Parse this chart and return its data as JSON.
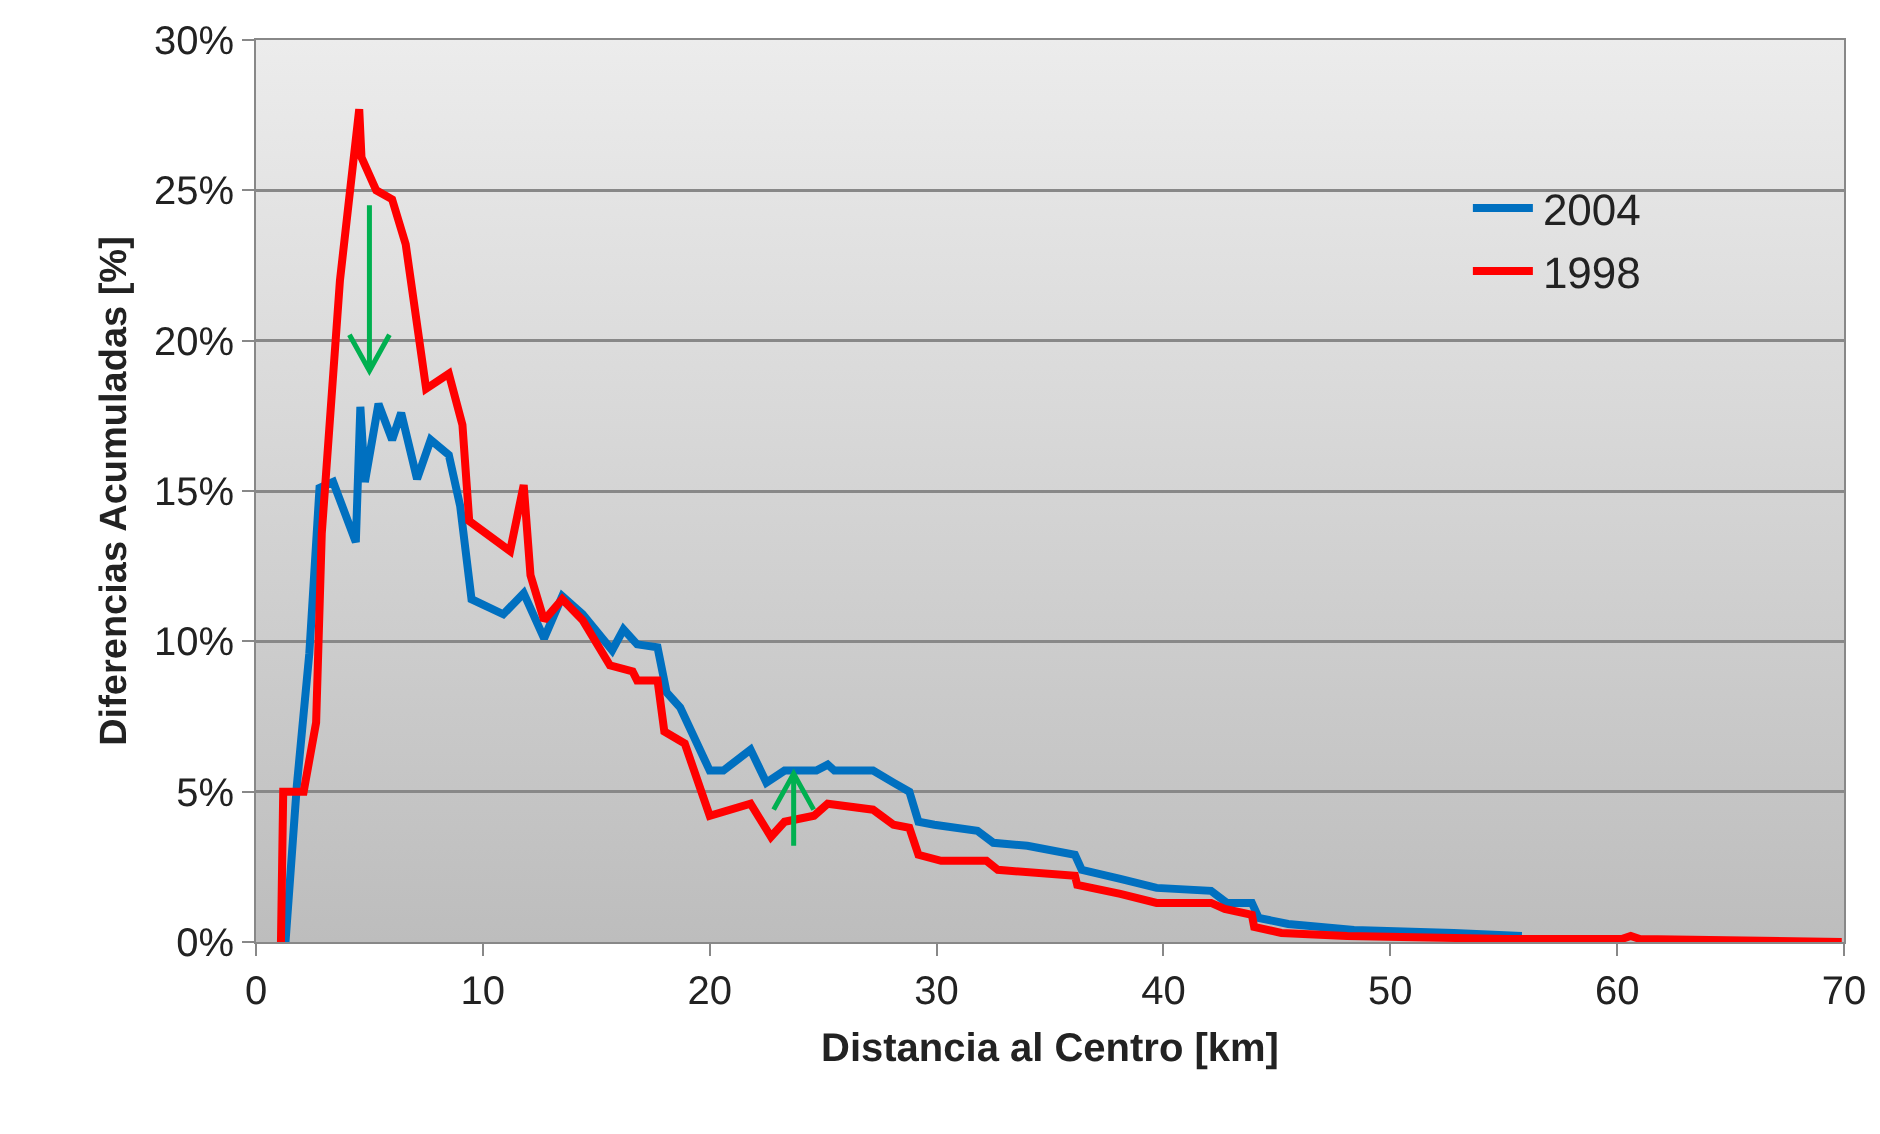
{
  "chart_data": {
    "type": "line",
    "xlabel": "Distancia al Centro [km]",
    "ylabel": "Diferencias Acumuladas [%]",
    "xlim": [
      0,
      70
    ],
    "xticks": [
      0,
      10,
      20,
      30,
      40,
      50,
      60,
      70
    ],
    "ylim": [
      0,
      30
    ],
    "yticks": [
      {
        "value": 0,
        "label": "0%"
      },
      {
        "value": 5,
        "label": "5%"
      },
      {
        "value": 10,
        "label": "10%"
      },
      {
        "value": 15,
        "label": "15%"
      },
      {
        "value": 20,
        "label": "20%"
      },
      {
        "value": 25,
        "label": "25%"
      },
      {
        "value": 30,
        "label": "30%"
      }
    ],
    "grid": "y",
    "legend": "top right",
    "line_style": "solid",
    "marker": "none",
    "series": [
      {
        "name": "2004",
        "color": "#0070c0",
        "x": [
          1.3,
          1.8,
          2.35,
          2.8,
          3.4,
          4.4,
          4.6,
          4.8,
          5.4,
          6.0,
          6.4,
          7.1,
          7.7,
          8.5,
          9.0,
          9.5,
          10.9,
          11.8,
          12.7,
          13.5,
          14.4,
          15.7,
          16.2,
          16.8,
          17.7,
          18.1,
          18.7,
          20.0,
          20.6,
          21.8,
          22.5,
          23.3,
          24.7,
          25.2,
          25.5,
          27.2,
          28.1,
          28.8,
          29.2,
          29.9,
          31.8,
          32.5,
          34.0,
          36.1,
          36.4,
          38.1,
          39.7,
          42.1,
          42.8,
          43.9,
          44.2,
          45.5,
          48.4,
          52.8,
          55.8
        ],
        "values": [
          0,
          5.2,
          9.6,
          15.1,
          15.3,
          13.3,
          17.8,
          15.3,
          17.9,
          16.7,
          17.6,
          15.4,
          16.7,
          16.2,
          14.5,
          11.4,
          10.9,
          11.6,
          10.1,
          11.5,
          10.9,
          9.7,
          10.4,
          9.9,
          9.8,
          8.3,
          7.8,
          5.7,
          5.7,
          6.4,
          5.3,
          5.7,
          5.7,
          5.9,
          5.7,
          5.7,
          5.3,
          5.0,
          4.0,
          3.9,
          3.7,
          3.3,
          3.2,
          2.9,
          2.4,
          2.1,
          1.8,
          1.7,
          1.3,
          1.3,
          0.8,
          0.6,
          0.4,
          0.3,
          0.2
        ]
      },
      {
        "name": "1998",
        "color": "#ff0000",
        "x": [
          1.1,
          1.2,
          2.1,
          2.65,
          2.9,
          3.7,
          4.55,
          4.65,
          5.3,
          6.0,
          6.6,
          7.5,
          8.5,
          9.1,
          9.4,
          11.2,
          11.8,
          12.1,
          12.7,
          13.5,
          14.4,
          15.6,
          16.6,
          16.8,
          17.7,
          18.0,
          18.9,
          20.0,
          21.8,
          22.7,
          23.3,
          24.6,
          25.2,
          27.2,
          28.1,
          28.8,
          29.2,
          30.2,
          32.2,
          32.7,
          36.1,
          36.2,
          38.1,
          39.7,
          42.1,
          42.7,
          43.9,
          44.0,
          45.2,
          48.1,
          55.2,
          60.2,
          60.6,
          61.0,
          69.9
        ],
        "values": [
          0,
          5.0,
          5.0,
          7.3,
          13.6,
          22.0,
          27.7,
          26.1,
          25.0,
          24.7,
          23.2,
          18.4,
          18.9,
          17.2,
          14.0,
          13.0,
          15.2,
          12.2,
          10.7,
          11.4,
          10.7,
          9.2,
          9.0,
          8.7,
          8.7,
          7.0,
          6.6,
          4.2,
          4.6,
          3.5,
          4.0,
          4.2,
          4.6,
          4.4,
          3.9,
          3.8,
          2.9,
          2.7,
          2.7,
          2.4,
          2.2,
          1.9,
          1.6,
          1.3,
          1.3,
          1.1,
          0.9,
          0.5,
          0.3,
          0.2,
          0.1,
          0.1,
          0.2,
          0.1,
          0
        ]
      }
    ]
  }
}
